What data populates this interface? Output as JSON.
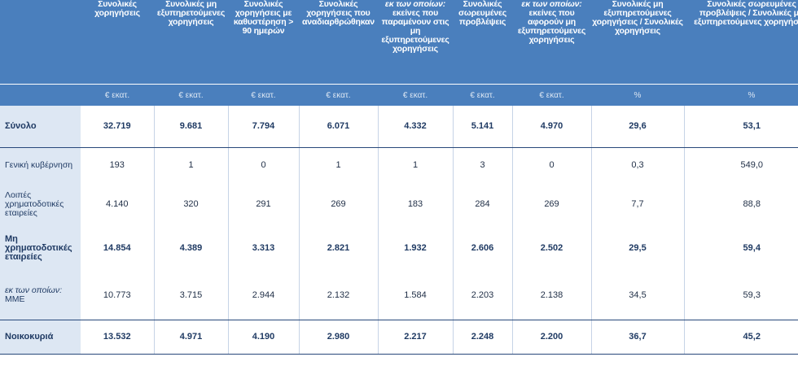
{
  "header": {
    "c1": "Συνολικές χορηγήσεις",
    "c2": "Συνολικές μη εξυπηρετούμενες χορηγήσεις",
    "c3": "Συνολικές χορηγήσεις με καθυστέρηση > 90 ημερών",
    "c4": "Συνολικές χορηγήσεις που αναδιαρθρώθηκαν",
    "c5_italic": "εκ των οποίων:",
    "c5": "εκείνες που παραμένουν στις μη εξυπηρετούμενες χορηγήσεις",
    "c6": "Συνολικές σωρευμένες προβλέψεις",
    "c7_italic": "εκ των οποίων:",
    "c7": "εκείνες που αφορούν μη εξυπηρετούμενες χορηγήσεις",
    "c8": "Συνολικές μη εξυπηρετούμενες χορηγήσεις / Συνολικές χορηγήσεις",
    "c9": "Συνολικές σωρευμένες προβλέψεις / Συνολικές μη εξυπηρετούμενες χορηγήσεις"
  },
  "units": [
    "€ εκατ.",
    "€ εκατ.",
    "€ εκατ.",
    "€ εκατ.",
    "€ εκατ.",
    "€ εκατ.",
    "€ εκατ.",
    "%",
    "%"
  ],
  "rows": [
    {
      "label": "Σύνολο",
      "values": [
        "32.719",
        "9.681",
        "7.794",
        "6.071",
        "4.332",
        "5.141",
        "4.970",
        "29,6",
        "53,1"
      ]
    },
    {
      "label": "Γενική κυβέρνηση",
      "values": [
        "193",
        "1",
        "0",
        "1",
        "1",
        "3",
        "0",
        "0,3",
        "549,0"
      ]
    },
    {
      "label": "Λοιπές χρηματοδοτικές εταιρείες",
      "values": [
        "4.140",
        "320",
        "291",
        "269",
        "183",
        "284",
        "269",
        "7,7",
        "88,8"
      ]
    },
    {
      "label": "Μη χρηματοδοτικές εταιρείες",
      "values": [
        "14.854",
        "4.389",
        "3.313",
        "2.821",
        "1.932",
        "2.606",
        "2.502",
        "29,5",
        "59,4"
      ]
    },
    {
      "label_italic": "εκ των οποίων:",
      "label": "ΜΜΕ",
      "values": [
        "10.773",
        "3.715",
        "2.944",
        "2.132",
        "1.584",
        "2.203",
        "2.138",
        "34,5",
        "59,3"
      ]
    },
    {
      "label": "Νοικοκυριά",
      "values": [
        "13.532",
        "4.971",
        "4.190",
        "2.980",
        "2.217",
        "2.248",
        "2.200",
        "36,7",
        "45,2"
      ]
    }
  ]
}
